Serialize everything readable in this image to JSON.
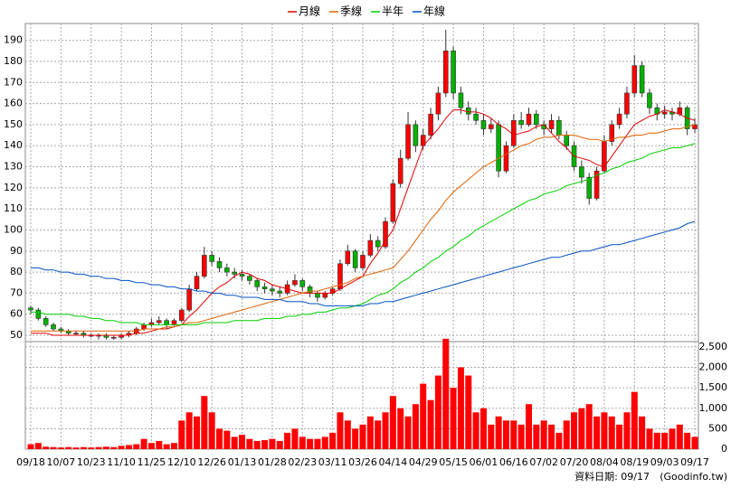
{
  "chart_data": {
    "type": "candlestick",
    "note": "資料日期: 09/17",
    "source": "(Goodinfo.tw)",
    "categories": [
      "09/18",
      null,
      null,
      null,
      "10/07",
      null,
      null,
      null,
      "10/23",
      null,
      null,
      null,
      "11/10",
      null,
      null,
      null,
      "11/25",
      null,
      null,
      null,
      "12/10",
      null,
      null,
      null,
      "12/26",
      null,
      null,
      null,
      "01/13",
      null,
      null,
      null,
      "01/28",
      null,
      null,
      null,
      "02/23",
      null,
      null,
      null,
      "03/11",
      null,
      null,
      null,
      "03/26",
      null,
      null,
      null,
      "04/14",
      null,
      null,
      null,
      "04/29",
      null,
      null,
      null,
      "05/15",
      null,
      null,
      null,
      "06/01",
      null,
      null,
      null,
      "06/16",
      null,
      null,
      null,
      "07/02",
      null,
      null,
      null,
      "07/20",
      null,
      null,
      null,
      "08/04",
      null,
      null,
      null,
      "08/19",
      null,
      null,
      null,
      "09/03",
      null,
      null,
      null,
      "09/17"
    ],
    "candles": [
      [
        63,
        64,
        60,
        62
      ],
      [
        62,
        63,
        57,
        58
      ],
      [
        58,
        59,
        54,
        55
      ],
      [
        55,
        56,
        52,
        53
      ],
      [
        53,
        54,
        51,
        52
      ],
      [
        52,
        53,
        50,
        51
      ],
      [
        51,
        52,
        50,
        51
      ],
      [
        51,
        52,
        49,
        50
      ],
      [
        50,
        51,
        49,
        50
      ],
      [
        50,
        51,
        48,
        50
      ],
      [
        50,
        51,
        48,
        49
      ],
      [
        49,
        50,
        48,
        49
      ],
      [
        49,
        51,
        48,
        50
      ],
      [
        50,
        52,
        49,
        51
      ],
      [
        51,
        54,
        50,
        53
      ],
      [
        53,
        56,
        52,
        55
      ],
      [
        55,
        58,
        54,
        56
      ],
      [
        56,
        59,
        55,
        57
      ],
      [
        57,
        58,
        53,
        55
      ],
      [
        55,
        58,
        54,
        57
      ],
      [
        57,
        63,
        56,
        62
      ],
      [
        62,
        74,
        61,
        72
      ],
      [
        72,
        80,
        71,
        78
      ],
      [
        78,
        92,
        77,
        88
      ],
      [
        88,
        90,
        83,
        85
      ],
      [
        85,
        87,
        80,
        82
      ],
      [
        82,
        84,
        78,
        80
      ],
      [
        80,
        82,
        77,
        79
      ],
      [
        79,
        81,
        76,
        78
      ],
      [
        78,
        79,
        74,
        76
      ],
      [
        76,
        77,
        71,
        73
      ],
      [
        73,
        75,
        70,
        72
      ],
      [
        72,
        74,
        69,
        71
      ],
      [
        71,
        73,
        68,
        70
      ],
      [
        70,
        76,
        69,
        74
      ],
      [
        74,
        79,
        73,
        76
      ],
      [
        76,
        77,
        71,
        73
      ],
      [
        73,
        74,
        68,
        70
      ],
      [
        70,
        71,
        66,
        68
      ],
      [
        68,
        71,
        67,
        70
      ],
      [
        70,
        73,
        69,
        72
      ],
      [
        72,
        86,
        71,
        84
      ],
      [
        84,
        93,
        83,
        90
      ],
      [
        90,
        91,
        80,
        82
      ],
      [
        82,
        90,
        81,
        88
      ],
      [
        88,
        98,
        87,
        95
      ],
      [
        95,
        97,
        90,
        92
      ],
      [
        92,
        106,
        91,
        104
      ],
      [
        104,
        124,
        103,
        122
      ],
      [
        122,
        138,
        120,
        134
      ],
      [
        134,
        156,
        133,
        150
      ],
      [
        150,
        152,
        137,
        140
      ],
      [
        140,
        148,
        138,
        145
      ],
      [
        145,
        158,
        143,
        155
      ],
      [
        155,
        168,
        152,
        165
      ],
      [
        165,
        195,
        163,
        185
      ],
      [
        185,
        187,
        162,
        165
      ],
      [
        165,
        168,
        155,
        158
      ],
      [
        158,
        161,
        152,
        155
      ],
      [
        155,
        158,
        150,
        152
      ],
      [
        152,
        155,
        145,
        148
      ],
      [
        148,
        153,
        146,
        150
      ],
      [
        150,
        152,
        125,
        128
      ],
      [
        128,
        142,
        127,
        140
      ],
      [
        140,
        155,
        139,
        152
      ],
      [
        152,
        156,
        148,
        150
      ],
      [
        150,
        158,
        149,
        155
      ],
      [
        155,
        157,
        148,
        150
      ],
      [
        150,
        152,
        145,
        148
      ],
      [
        148,
        155,
        146,
        152
      ],
      [
        152,
        154,
        143,
        145
      ],
      [
        145,
        147,
        138,
        140
      ],
      [
        140,
        142,
        128,
        130
      ],
      [
        130,
        133,
        122,
        125
      ],
      [
        125,
        127,
        112,
        115
      ],
      [
        115,
        130,
        114,
        128
      ],
      [
        128,
        145,
        127,
        142
      ],
      [
        142,
        152,
        140,
        150
      ],
      [
        150,
        158,
        148,
        155
      ],
      [
        155,
        168,
        153,
        165
      ],
      [
        165,
        183,
        163,
        178
      ],
      [
        178,
        180,
        163,
        165
      ],
      [
        165,
        167,
        155,
        158
      ],
      [
        158,
        160,
        152,
        155
      ],
      [
        155,
        159,
        153,
        156
      ],
      [
        156,
        158,
        152,
        155
      ],
      [
        155,
        161,
        154,
        158
      ],
      [
        158,
        159,
        145,
        148
      ],
      [
        148,
        153,
        146,
        150
      ]
    ],
    "up_color": "#ff0000",
    "down_color": "#00b000",
    "volume": [
      120,
      150,
      60,
      50,
      40,
      50,
      40,
      50,
      40,
      50,
      60,
      50,
      80,
      100,
      120,
      250,
      150,
      200,
      120,
      150,
      700,
      900,
      800,
      1300,
      900,
      500,
      450,
      300,
      350,
      250,
      200,
      220,
      250,
      200,
      400,
      500,
      300,
      250,
      250,
      300,
      400,
      900,
      700,
      500,
      600,
      800,
      700,
      900,
      1300,
      1000,
      800,
      1100,
      1600,
      1200,
      1800,
      2700,
      1500,
      2000,
      1800,
      900,
      1000,
      600,
      800,
      700,
      700,
      600,
      1100,
      600,
      700,
      600,
      400,
      700,
      900,
      1000,
      1100,
      800,
      900,
      800,
      600,
      900,
      1400,
      800,
      500,
      400,
      400,
      500,
      600,
      400,
      300
    ],
    "volume_color": "#ff0000",
    "series": [
      {
        "name": "月線",
        "color": "#e00000",
        "values": [
          51,
          51,
          51,
          50,
          50,
          50,
          50,
          50,
          50,
          50,
          50,
          50,
          50,
          50,
          51,
          51,
          52,
          53,
          53,
          54,
          55,
          59,
          62,
          66,
          70,
          73,
          75,
          78,
          80,
          79,
          77,
          76,
          74,
          73,
          72,
          71,
          70,
          70,
          70,
          70,
          70,
          72,
          74,
          76,
          78,
          84,
          89,
          95,
          100,
          110,
          120,
          130,
          140,
          144,
          148,
          153,
          157,
          157,
          156,
          156,
          155,
          153,
          150,
          148,
          145,
          146,
          147,
          149,
          150,
          146,
          142,
          139,
          135,
          134,
          133,
          131,
          130,
          135,
          140,
          145,
          150,
          152,
          154,
          155,
          157,
          156,
          155,
          153,
          152
        ]
      },
      {
        "name": "季線",
        "color": "#e06000",
        "values": [
          52,
          52,
          52,
          52,
          52,
          52,
          52,
          52,
          52,
          52,
          52,
          52,
          52,
          52,
          52,
          53,
          53,
          53,
          54,
          54,
          55,
          56,
          56,
          57,
          58,
          59,
          60,
          61,
          62,
          63,
          64,
          65,
          66,
          67,
          68,
          69,
          70,
          71,
          71,
          72,
          73,
          74,
          75,
          77,
          78,
          79,
          80,
          81,
          82,
          86,
          90,
          95,
          100,
          105,
          109,
          114,
          118,
          121,
          124,
          127,
          130,
          132,
          134,
          136,
          138,
          140,
          141,
          143,
          144,
          144,
          145,
          145,
          145,
          144,
          143,
          143,
          142,
          143,
          144,
          144,
          145,
          145,
          146,
          146,
          147,
          148,
          148,
          149,
          150
        ]
      },
      {
        "name": "半年",
        "color": "#00d000",
        "values": [
          61,
          61,
          60,
          60,
          60,
          60,
          59,
          59,
          58,
          58,
          57,
          57,
          56,
          56,
          56,
          55,
          55,
          55,
          55,
          55,
          55,
          55,
          55,
          56,
          56,
          56,
          56,
          57,
          57,
          57,
          57,
          58,
          58,
          58,
          59,
          59,
          60,
          60,
          61,
          61,
          62,
          63,
          63,
          64,
          65,
          67,
          69,
          70,
          72,
          75,
          77,
          80,
          82,
          85,
          87,
          90,
          92,
          95,
          97,
          100,
          102,
          104,
          106,
          108,
          110,
          112,
          114,
          115,
          117,
          118,
          119,
          121,
          122,
          123,
          124,
          126,
          127,
          129,
          130,
          132,
          133,
          134,
          136,
          137,
          138,
          139,
          139,
          140,
          141
        ]
      },
      {
        "name": "年線",
        "color": "#0050c0",
        "values": [
          82,
          82,
          81,
          81,
          80,
          80,
          79,
          79,
          78,
          78,
          77,
          77,
          76,
          76,
          75,
          75,
          74,
          74,
          73,
          73,
          72,
          72,
          71,
          71,
          70,
          70,
          69,
          69,
          68,
          68,
          68,
          67,
          67,
          67,
          66,
          66,
          66,
          65,
          65,
          64,
          64,
          64,
          64,
          64,
          64,
          65,
          65,
          66,
          66,
          67,
          68,
          69,
          70,
          71,
          72,
          73,
          74,
          75,
          76,
          77,
          78,
          79,
          80,
          81,
          82,
          83,
          84,
          85,
          86,
          87,
          87,
          88,
          89,
          90,
          90,
          91,
          92,
          93,
          93,
          94,
          95,
          96,
          97,
          98,
          99,
          100,
          101,
          103,
          104
        ]
      }
    ],
    "ylim": [
      47,
      198
    ],
    "yticks": [
      50,
      60,
      70,
      80,
      90,
      100,
      110,
      120,
      130,
      140,
      150,
      160,
      170,
      180,
      190
    ],
    "y2lim": [
      0,
      2630
    ],
    "y2ticks": [
      0,
      500,
      {
        "value": 1000,
        "label": "1,000"
      },
      {
        "value": 1500,
        "label": "1,500"
      },
      {
        "value": 2000,
        "label": "2,000"
      },
      {
        "value": 2500,
        "label": "2,500"
      }
    ],
    "grid": true
  }
}
